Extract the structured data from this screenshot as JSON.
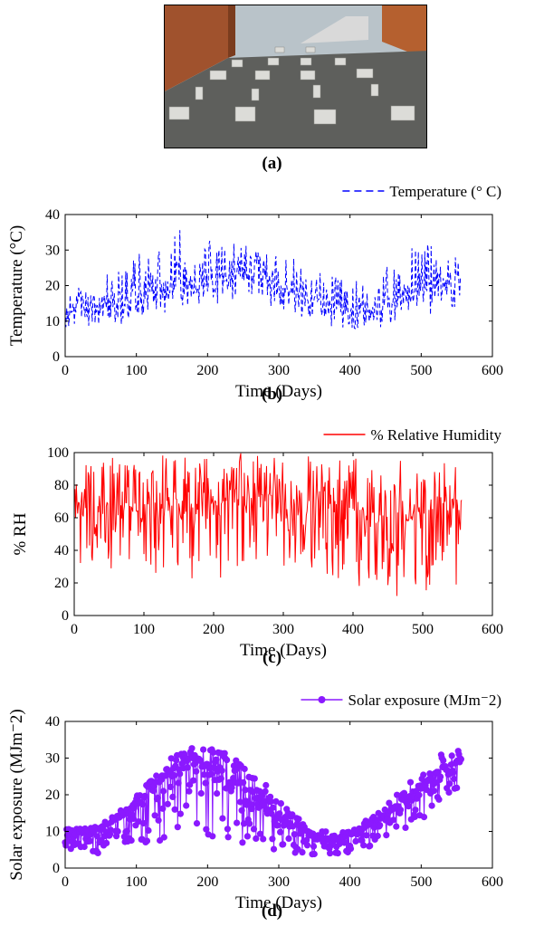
{
  "panel_labels": {
    "a": "(a)",
    "b": "(b)",
    "c": "(c)",
    "d": "(d)"
  },
  "chart_data": [
    {
      "id": "temperature",
      "type": "line",
      "xlabel": "Time (Days)",
      "ylabel": "Temperature (°C)",
      "xlim": [
        0,
        600
      ],
      "ylim": [
        0,
        40
      ],
      "xticks": [
        "0",
        "100",
        "200",
        "300",
        "400",
        "500",
        "600"
      ],
      "yticks": [
        "0",
        "10",
        "20",
        "30",
        "40"
      ],
      "legend": {
        "label": "Temperature (° C)",
        "position": "top-right",
        "style": "dashed"
      },
      "color": "#0000ff",
      "series": [
        {
          "name": "Temperature (° C)",
          "x": [
            0,
            20,
            40,
            60,
            80,
            100,
            120,
            140,
            160,
            180,
            200,
            220,
            240,
            260,
            280,
            300,
            320,
            340,
            360,
            380,
            400,
            420,
            440,
            460,
            480,
            500,
            520,
            540,
            556
          ],
          "y": [
            14,
            15,
            14,
            16,
            15,
            17,
            18,
            19,
            21,
            20,
            21,
            22,
            23,
            23,
            22,
            20,
            18,
            16,
            15,
            14,
            13,
            13,
            14,
            15,
            17,
            19,
            20,
            21,
            22
          ],
          "min": [
            8,
            9,
            8,
            10,
            9,
            10,
            11,
            12,
            13,
            12,
            14,
            15,
            16,
            16,
            15,
            13,
            11,
            10,
            9,
            8,
            7,
            7,
            8,
            9,
            10,
            11,
            12,
            13,
            14
          ],
          "max": [
            20,
            21,
            20,
            24,
            24,
            31,
            30,
            33,
            37,
            32,
            34,
            33,
            32,
            33,
            31,
            29,
            28,
            25,
            24,
            23,
            22,
            23,
            26,
            28,
            30,
            34,
            33,
            31,
            29
          ]
        }
      ]
    },
    {
      "id": "humidity",
      "type": "line",
      "xlabel": "Time (Days)",
      "ylabel": "% RH",
      "xlim": [
        0,
        600
      ],
      "ylim": [
        0,
        100
      ],
      "xticks": [
        "0",
        "100",
        "200",
        "300",
        "400",
        "500",
        "600"
      ],
      "yticks": [
        "0",
        "20",
        "40",
        "60",
        "80",
        "100"
      ],
      "legend": {
        "label": "% Relative Humidity",
        "position": "top-right",
        "style": "solid"
      },
      "color": "#ff0000",
      "series": [
        {
          "name": "% Relative Humidity",
          "x": [
            0,
            20,
            40,
            60,
            80,
            100,
            120,
            140,
            160,
            180,
            200,
            220,
            240,
            260,
            280,
            300,
            320,
            340,
            360,
            380,
            400,
            420,
            440,
            460,
            480,
            500,
            520,
            540,
            556
          ],
          "y": [
            70,
            68,
            70,
            68,
            66,
            62,
            66,
            68,
            66,
            68,
            70,
            70,
            72,
            74,
            74,
            72,
            70,
            70,
            70,
            68,
            66,
            64,
            62,
            60,
            62,
            64,
            66,
            68,
            70
          ],
          "min": [
            32,
            28,
            26,
            30,
            28,
            12,
            14,
            20,
            18,
            24,
            26,
            14,
            30,
            34,
            32,
            28,
            30,
            24,
            26,
            22,
            20,
            14,
            22,
            10,
            16,
            10,
            20,
            26,
            12
          ],
          "max": [
            96,
            98,
            97,
            98,
            98,
            99,
            99,
            98,
            99,
            98,
            99,
            99,
            100,
            99,
            99,
            99,
            99,
            98,
            99,
            99,
            98,
            97,
            98,
            98,
            99,
            97,
            96,
            94,
            92
          ]
        }
      ]
    },
    {
      "id": "solar",
      "type": "line",
      "xlabel": "Time (Days)",
      "ylabel": "Solar exposure (MJm⁻2)",
      "xlim": [
        0,
        600
      ],
      "ylim": [
        0,
        40
      ],
      "xticks": [
        "0",
        "100",
        "200",
        "300",
        "400",
        "500",
        "600"
      ],
      "yticks": [
        "0",
        "10",
        "20",
        "30",
        "40"
      ],
      "legend": {
        "label": "Solar exposure (MJm⁻2)",
        "position": "top-right",
        "style": "solid-circle-markers"
      },
      "color": "#8b19ff",
      "series": [
        {
          "name": "Solar exposure (MJm⁻2)",
          "x": [
            0,
            20,
            40,
            60,
            80,
            100,
            120,
            140,
            160,
            180,
            200,
            220,
            240,
            260,
            280,
            300,
            320,
            340,
            360,
            380,
            400,
            420,
            440,
            460,
            480,
            500,
            520,
            540,
            556
          ],
          "y": [
            10,
            10,
            10,
            12,
            14,
            17,
            21,
            25,
            28,
            28,
            28,
            26,
            23,
            20,
            17,
            14,
            11,
            9,
            8,
            8,
            9,
            11,
            13,
            16,
            19,
            22,
            26,
            28,
            30
          ],
          "min": [
            6,
            4,
            3,
            5,
            6,
            7,
            6,
            6,
            8,
            6,
            6,
            8,
            6,
            5,
            5,
            4,
            4,
            3,
            2,
            3,
            4,
            5,
            7,
            9,
            11,
            13,
            17,
            20,
            22
          ],
          "max": [
            11,
            11,
            11,
            13,
            16,
            20,
            24,
            29,
            32,
            33,
            33,
            32,
            30,
            26,
            23,
            19,
            15,
            11,
            10,
            10,
            10,
            13,
            15,
            19,
            23,
            26,
            30,
            33,
            34
          ]
        }
      ]
    }
  ]
}
